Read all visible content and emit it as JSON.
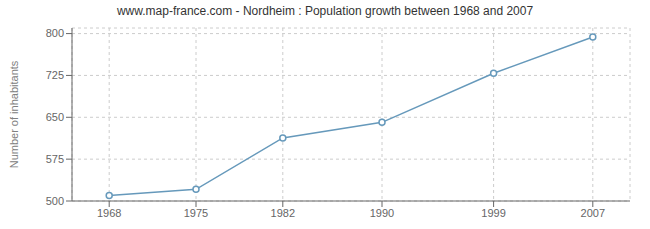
{
  "chart_data": {
    "type": "line",
    "title": "www.map-france.com - Nordheim : Population growth between 1968 and 2007",
    "ylabel": "Number of inhabitants",
    "x": [
      1968,
      1975,
      1982,
      1990,
      1999,
      2007
    ],
    "values": [
      510,
      521,
      613,
      641,
      729,
      794
    ],
    "xlim": [
      1965,
      2010
    ],
    "xticks": [
      1968,
      1975,
      1982,
      1990,
      1999,
      2007
    ],
    "ylim": [
      500,
      810
    ],
    "yticks": [
      500,
      575,
      650,
      725,
      800
    ],
    "color": "#6699bb",
    "marker": "circle",
    "grid": true
  }
}
